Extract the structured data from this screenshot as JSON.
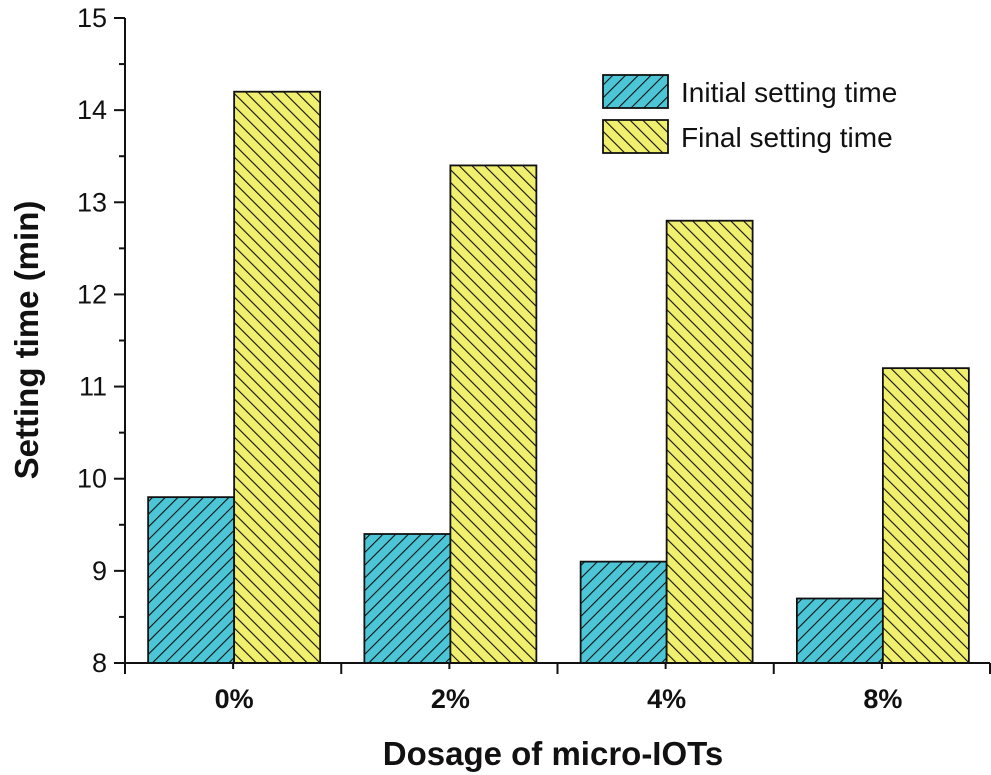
{
  "chart_data": {
    "type": "bar",
    "categories": [
      "0%",
      "2%",
      "4%",
      "8%"
    ],
    "series": [
      {
        "name": "Initial setting time",
        "values": [
          9.8,
          9.4,
          9.1,
          8.7
        ],
        "color": "#4cc6d6",
        "hatch": "forward-diagonal"
      },
      {
        "name": "Final setting time",
        "values": [
          14.2,
          13.4,
          12.8,
          11.2
        ],
        "color": "#f0ef6e",
        "hatch": "back-diagonal"
      }
    ],
    "xlabel": "Dosage of micro-IOTs",
    "ylabel": "Setting time (min)",
    "ylim": [
      8,
      15
    ],
    "yticks": [
      "8",
      "9",
      "10",
      "11",
      "12",
      "13",
      "14",
      "15"
    ],
    "grid": false,
    "legend_position": "top-right"
  }
}
